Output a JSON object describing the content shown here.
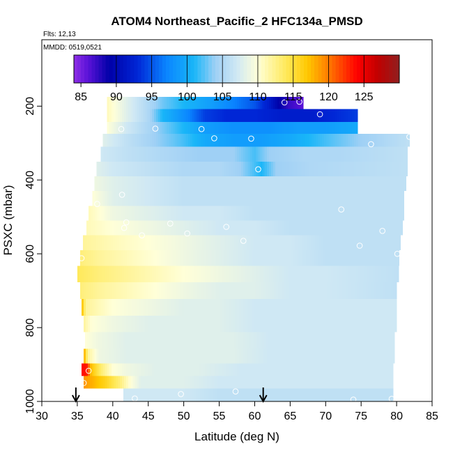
{
  "chart_data": {
    "type": "heatmap",
    "title": "ATOM4 Northeast_Pacific_2 HFC134a_PMSD",
    "flights_text": "Flts: 12,13",
    "dates_text": "MMDD: 0519,0521",
    "xlabel": "Latitude (deg N)",
    "ylabel": "PSXC (mbar)",
    "xlim": [
      30,
      85
    ],
    "ylim": [
      1000,
      20
    ],
    "x_ticks": [
      30,
      35,
      40,
      45,
      50,
      55,
      60,
      65,
      70,
      75,
      80,
      85
    ],
    "y_ticks": [
      200,
      400,
      600,
      800,
      1000
    ],
    "colorbar": {
      "min": 84,
      "max": 130,
      "ticks": [
        85,
        90,
        95,
        100,
        105,
        110,
        115,
        120,
        125
      ],
      "stops": [
        {
          "v": 84,
          "c": "#8f2fe6"
        },
        {
          "v": 86,
          "c": "#5a12d8"
        },
        {
          "v": 89,
          "c": "#0000a8"
        },
        {
          "v": 93,
          "c": "#0026d6"
        },
        {
          "v": 97,
          "c": "#0a84ff"
        },
        {
          "v": 101,
          "c": "#19b6f8"
        },
        {
          "v": 104,
          "c": "#9fd0f5"
        },
        {
          "v": 107,
          "c": "#cfe8f4"
        },
        {
          "v": 110,
          "c": "#ffffd8"
        },
        {
          "v": 114,
          "c": "#ffe95a"
        },
        {
          "v": 117,
          "c": "#ffc800"
        },
        {
          "v": 120,
          "c": "#ff7a00"
        },
        {
          "v": 124,
          "c": "#ff0000"
        },
        {
          "v": 127,
          "c": "#c00000"
        },
        {
          "v": 130,
          "c": "#902020"
        }
      ]
    },
    "rows": [
      {
        "p": 190,
        "x_start": 39.2,
        "x_end": 66.8,
        "values": [
          [
            39.2,
            111
          ],
          [
            41,
            109
          ],
          [
            44,
            106
          ],
          [
            47,
            103
          ],
          [
            50,
            101
          ],
          [
            54,
            99
          ],
          [
            57,
            97
          ],
          [
            60,
            95
          ],
          [
            62,
            92
          ],
          [
            63.5,
            89
          ],
          [
            65,
            87
          ],
          [
            66.8,
            86
          ]
        ]
      },
      {
        "p": 225,
        "x_start": 39.2,
        "x_end": 74.5,
        "values": [
          [
            39.2,
            111
          ],
          [
            42,
            108
          ],
          [
            45,
            105
          ],
          [
            47,
            101
          ],
          [
            50,
            98
          ],
          [
            53,
            94
          ],
          [
            56,
            93
          ],
          [
            60,
            93
          ],
          [
            64,
            92
          ],
          [
            68,
            92
          ],
          [
            71,
            93
          ],
          [
            74.5,
            94
          ]
        ]
      },
      {
        "p": 260,
        "x_start": 39.2,
        "x_end": 74.5,
        "values": [
          [
            39.2,
            110
          ],
          [
            42,
            107
          ],
          [
            46,
            104
          ],
          [
            50,
            101
          ],
          [
            53,
            99
          ],
          [
            57,
            98
          ],
          [
            62,
            98
          ],
          [
            66,
            99
          ],
          [
            70,
            99
          ],
          [
            74.5,
            100
          ]
        ]
      },
      {
        "p": 290,
        "x_start": 38.6,
        "x_end": 81.8,
        "values": [
          [
            38.6,
            108
          ],
          [
            42,
            106
          ],
          [
            46,
            104
          ],
          [
            50,
            102
          ],
          [
            53,
            100
          ],
          [
            57,
            99
          ],
          [
            61,
            99
          ],
          [
            65,
            100
          ],
          [
            70,
            102
          ],
          [
            75,
            104
          ],
          [
            81.8,
            106
          ]
        ]
      },
      {
        "p": 330,
        "x_start": 38.3,
        "x_end": 81.5,
        "values": [
          [
            38.3,
            107
          ],
          [
            42,
            106
          ],
          [
            47,
            105
          ],
          [
            52,
            104
          ],
          [
            57,
            104
          ],
          [
            60,
            102
          ],
          [
            62,
            104
          ],
          [
            67,
            105
          ],
          [
            72,
            105
          ],
          [
            81.5,
            106
          ]
        ]
      },
      {
        "p": 370,
        "x_start": 37.7,
        "x_end": 81.5,
        "values": [
          [
            37.7,
            108
          ],
          [
            40,
            107
          ],
          [
            45,
            106
          ],
          [
            50,
            105
          ],
          [
            55,
            105
          ],
          [
            58,
            104
          ],
          [
            61,
            101
          ],
          [
            63,
            104
          ],
          [
            68,
            105
          ],
          [
            81.5,
            106
          ]
        ]
      },
      {
        "p": 410,
        "x_start": 37.4,
        "x_end": 81.3,
        "values": [
          [
            37.4,
            109
          ],
          [
            40,
            108
          ],
          [
            45,
            107
          ],
          [
            50,
            106
          ],
          [
            55,
            106
          ],
          [
            60,
            106
          ],
          [
            65,
            106
          ],
          [
            70,
            106
          ],
          [
            81.3,
            106
          ]
        ]
      },
      {
        "p": 450,
        "x_start": 37.1,
        "x_end": 81.0,
        "values": [
          [
            37.1,
            110
          ],
          [
            40,
            108
          ],
          [
            45,
            107
          ],
          [
            50,
            106
          ],
          [
            55,
            106
          ],
          [
            60,
            106
          ],
          [
            65,
            106
          ],
          [
            70,
            106
          ],
          [
            81,
            106
          ]
        ]
      },
      {
        "p": 490,
        "x_start": 36.6,
        "x_end": 81.0,
        "values": [
          [
            36.6,
            111
          ],
          [
            40,
            109
          ],
          [
            45,
            108
          ],
          [
            50,
            107
          ],
          [
            55,
            107
          ],
          [
            60,
            106
          ],
          [
            65,
            106
          ],
          [
            70,
            106
          ],
          [
            81,
            106
          ]
        ]
      },
      {
        "p": 530,
        "x_start": 36.3,
        "x_end": 80.8,
        "values": [
          [
            36.3,
            111
          ],
          [
            40,
            110
          ],
          [
            45,
            109
          ],
          [
            50,
            108
          ],
          [
            55,
            107
          ],
          [
            60,
            107
          ],
          [
            65,
            106
          ],
          [
            70,
            106
          ],
          [
            80.8,
            106
          ]
        ]
      },
      {
        "p": 570,
        "x_start": 35.8,
        "x_end": 80.5,
        "values": [
          [
            35.8,
            112
          ],
          [
            40,
            111
          ],
          [
            45,
            110
          ],
          [
            50,
            109
          ],
          [
            55,
            108
          ],
          [
            60,
            107
          ],
          [
            65,
            107
          ],
          [
            70,
            106
          ],
          [
            80.5,
            106
          ]
        ]
      },
      {
        "p": 610,
        "x_start": 35.4,
        "x_end": 80.3,
        "values": [
          [
            35.4,
            113
          ],
          [
            38,
            112
          ],
          [
            42,
            111
          ],
          [
            46,
            110
          ],
          [
            50,
            109
          ],
          [
            55,
            108
          ],
          [
            60,
            107
          ],
          [
            65,
            107
          ],
          [
            70,
            106
          ],
          [
            80.3,
            106
          ]
        ]
      },
      {
        "p": 655,
        "x_start": 35.0,
        "x_end": 80.3,
        "values": [
          [
            35,
            114
          ],
          [
            38,
            113
          ],
          [
            42,
            112
          ],
          [
            46,
            111
          ],
          [
            50,
            110
          ],
          [
            55,
            109
          ],
          [
            60,
            108
          ],
          [
            65,
            107
          ],
          [
            70,
            107
          ],
          [
            80.3,
            106
          ]
        ]
      },
      {
        "p": 700,
        "x_start": 35.4,
        "x_end": 80.0,
        "values": [
          [
            35.4,
            113
          ],
          [
            38,
            112
          ],
          [
            42,
            111
          ],
          [
            46,
            110
          ],
          [
            50,
            109
          ],
          [
            55,
            108
          ],
          [
            60,
            108
          ],
          [
            65,
            107
          ],
          [
            70,
            107
          ],
          [
            80,
            106
          ]
        ]
      },
      {
        "p": 745,
        "x_start": 35.6,
        "x_end": 80.0,
        "values": [
          [
            35.6,
            118
          ],
          [
            36.2,
            112
          ],
          [
            40,
            110
          ],
          [
            45,
            109
          ],
          [
            50,
            108
          ],
          [
            55,
            108
          ],
          [
            60,
            107
          ],
          [
            65,
            107
          ],
          [
            70,
            107
          ],
          [
            80,
            107
          ]
        ]
      },
      {
        "p": 790,
        "x_start": 35.9,
        "x_end": 80.0,
        "values": [
          [
            35.9,
            112
          ],
          [
            37,
            110
          ],
          [
            40,
            109
          ],
          [
            45,
            108
          ],
          [
            50,
            108
          ],
          [
            55,
            108
          ],
          [
            60,
            107
          ],
          [
            65,
            107
          ],
          [
            70,
            107
          ],
          [
            80,
            107
          ]
        ]
      },
      {
        "p": 835,
        "x_start": 36.1,
        "x_end": 79.7,
        "values": [
          [
            36.1,
            110
          ],
          [
            38,
            109
          ],
          [
            42,
            108
          ],
          [
            47,
            108
          ],
          [
            52,
            108
          ],
          [
            57,
            108
          ],
          [
            62,
            107
          ],
          [
            67,
            107
          ],
          [
            72,
            107
          ],
          [
            79.7,
            107
          ]
        ]
      },
      {
        "p": 880,
        "x_start": 35.9,
        "x_end": 79.7,
        "values": [
          [
            35.9,
            119
          ],
          [
            36.5,
            112
          ],
          [
            38,
            109
          ],
          [
            42,
            108
          ],
          [
            47,
            108
          ],
          [
            52,
            108
          ],
          [
            57,
            108
          ],
          [
            62,
            107
          ],
          [
            67,
            107
          ],
          [
            79.7,
            107
          ]
        ]
      },
      {
        "p": 915,
        "x_start": 35.6,
        "x_end": 79.5,
        "values": [
          [
            35.6,
            124
          ],
          [
            36.4,
            123
          ],
          [
            37,
            117
          ],
          [
            38.5,
            113
          ],
          [
            40,
            110
          ],
          [
            42,
            109
          ],
          [
            46,
            108
          ],
          [
            52,
            108
          ],
          [
            58,
            107
          ],
          [
            65,
            107
          ],
          [
            79.5,
            107
          ]
        ]
      },
      {
        "p": 948,
        "x_start": 35.9,
        "x_end": 79.5,
        "values": [
          [
            35.9,
            119
          ],
          [
            37,
            118
          ],
          [
            39,
            116
          ],
          [
            41,
            113
          ],
          [
            42.5,
            110
          ],
          [
            44,
            108
          ],
          [
            50,
            108
          ],
          [
            55,
            107
          ],
          [
            60,
            107
          ],
          [
            70,
            107
          ],
          [
            79.5,
            107
          ]
        ]
      },
      {
        "p": 982,
        "x_start": 41.5,
        "x_end": 79.5,
        "values": [
          [
            41.5,
            107
          ],
          [
            45,
            107
          ],
          [
            50,
            107
          ],
          [
            55,
            106
          ],
          [
            60,
            106
          ],
          [
            65,
            106
          ],
          [
            70,
            106
          ],
          [
            79.5,
            106
          ]
        ]
      }
    ],
    "samples": [
      {
        "lat": 64.2,
        "p": 190
      },
      {
        "lat": 66.3,
        "p": 188
      },
      {
        "lat": 69.2,
        "p": 222
      },
      {
        "lat": 41.2,
        "p": 262
      },
      {
        "lat": 46.0,
        "p": 261
      },
      {
        "lat": 52.5,
        "p": 262
      },
      {
        "lat": 54.3,
        "p": 287
      },
      {
        "lat": 59.5,
        "p": 288
      },
      {
        "lat": 76.4,
        "p": 303
      },
      {
        "lat": 81.8,
        "p": 283
      },
      {
        "lat": 60.5,
        "p": 371
      },
      {
        "lat": 41.3,
        "p": 440
      },
      {
        "lat": 37.8,
        "p": 465
      },
      {
        "lat": 72.2,
        "p": 480
      },
      {
        "lat": 41.9,
        "p": 515
      },
      {
        "lat": 41.6,
        "p": 530
      },
      {
        "lat": 48.1,
        "p": 518
      },
      {
        "lat": 44.1,
        "p": 550
      },
      {
        "lat": 50.5,
        "p": 545
      },
      {
        "lat": 56.0,
        "p": 527
      },
      {
        "lat": 58.4,
        "p": 565
      },
      {
        "lat": 78.0,
        "p": 538
      },
      {
        "lat": 74.8,
        "p": 578
      },
      {
        "lat": 80.1,
        "p": 600
      },
      {
        "lat": 35.6,
        "p": 612
      },
      {
        "lat": 36.6,
        "p": 917
      },
      {
        "lat": 35.9,
        "p": 950
      },
      {
        "lat": 43.1,
        "p": 992
      },
      {
        "lat": 49.6,
        "p": 980
      },
      {
        "lat": 57.3,
        "p": 973
      },
      {
        "lat": 73.9,
        "p": 995
      },
      {
        "lat": 79.3,
        "p": 993
      }
    ],
    "arrows": [
      34.8,
      61.2
    ]
  }
}
